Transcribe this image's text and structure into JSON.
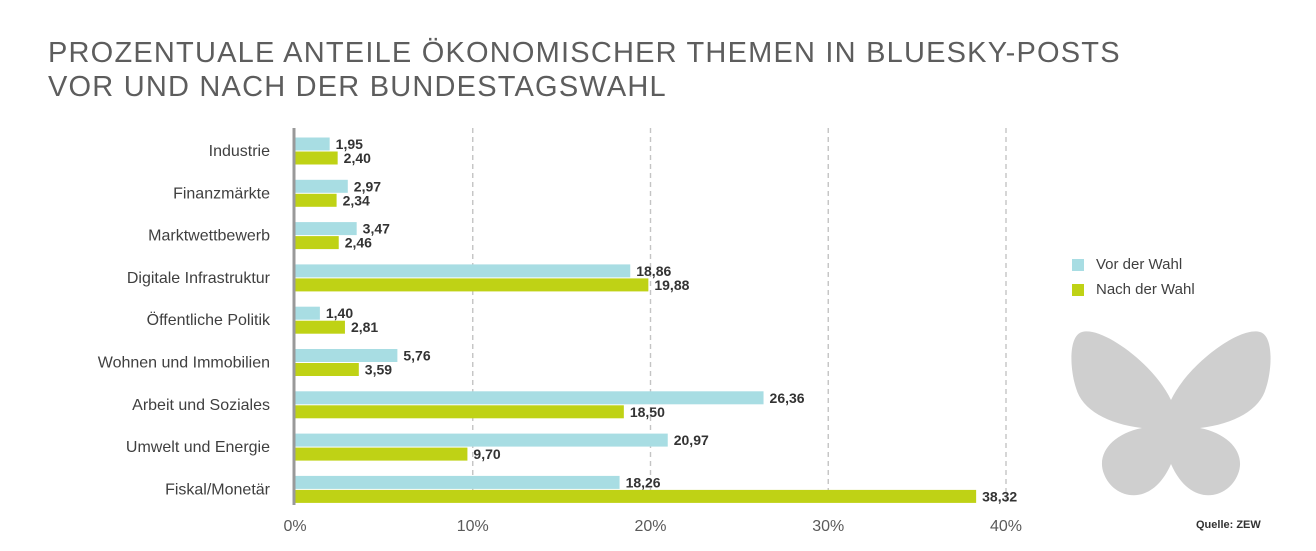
{
  "header": {
    "title_line1": "PROZENTUALE ANTEILE ÖKONOMISCHER THEMEN IN BLUESKY-POSTS",
    "title_line2": "VOR UND NACH DER BUNDESTAGSWAHL"
  },
  "source": "Quelle: ZEW",
  "logo": "bluesky-butterfly-icon",
  "colors": {
    "vor": "#a8dde3",
    "nach": "#bfd215",
    "axis": "#999999",
    "grid": "#c4c4c4",
    "text": "#3f3f3f",
    "logo": "#cfcfcf"
  },
  "chart_data": {
    "type": "bar",
    "orientation": "horizontal",
    "categories": [
      "Industrie",
      "Finanzmärkte",
      "Marktwettbewerb",
      "Digitale Infrastruktur",
      "Öffentliche Politik",
      "Wohnen und Immobilien",
      "Arbeit und Soziales",
      "Umwelt und Energie",
      "Fiskal/Monetär"
    ],
    "series": [
      {
        "name": "Vor der Wahl",
        "values": [
          1.95,
          2.97,
          3.47,
          18.86,
          1.4,
          5.76,
          26.36,
          20.97,
          18.26
        ],
        "labels": [
          "1,95",
          "2,97",
          "3,47",
          "18,86",
          "1,40",
          "5,76",
          "26,36",
          "20,97",
          "18,26"
        ]
      },
      {
        "name": "Nach der Wahl",
        "values": [
          2.4,
          2.34,
          2.46,
          19.88,
          2.81,
          3.59,
          18.5,
          9.7,
          38.32
        ],
        "labels": [
          "2,40",
          "2,34",
          "2,46",
          "19,88",
          "2,81",
          "3,59",
          "18,50",
          "9,70",
          "38,32"
        ]
      }
    ],
    "xlim": [
      0,
      40
    ],
    "x_ticks": [
      "0%",
      "10%",
      "20%",
      "30%",
      "40%"
    ],
    "grid": true,
    "legend_position": "right"
  }
}
